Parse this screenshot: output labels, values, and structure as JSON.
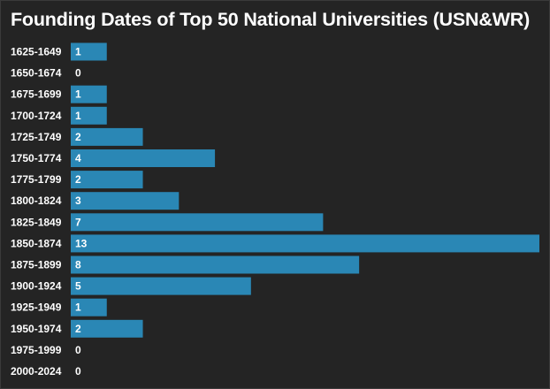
{
  "chart_data": {
    "type": "bar",
    "orientation": "horizontal",
    "title": "Founding Dates of Top 50 National Universities (USN&WR)",
    "categories": [
      "1625-1649",
      "1650-1674",
      "1675-1699",
      "1700-1724",
      "1725-1749",
      "1750-1774",
      "1775-1799",
      "1800-1824",
      "1825-1849",
      "1850-1874",
      "1875-1899",
      "1900-1924",
      "1925-1949",
      "1950-1974",
      "1975-1999",
      "2000-2024"
    ],
    "values": [
      1,
      0,
      1,
      1,
      2,
      4,
      2,
      3,
      7,
      13,
      8,
      5,
      1,
      2,
      0,
      0
    ],
    "xlim": [
      0,
      13
    ],
    "grid": false,
    "legend": "none",
    "data_labels": true
  },
  "colors": {
    "background": "#242424",
    "bar": "#2a87b5",
    "text": "#ffffff"
  }
}
